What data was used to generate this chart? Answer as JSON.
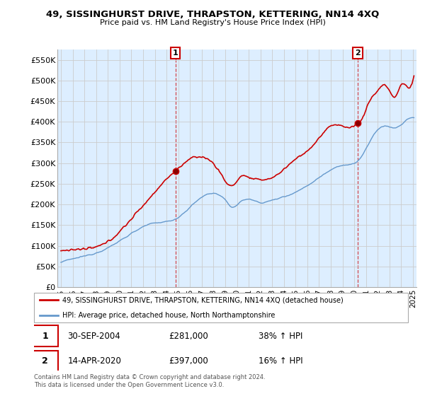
{
  "title": "49, SISSINGHURST DRIVE, THRAPSTON, KETTERING, NN14 4XQ",
  "subtitle": "Price paid vs. HM Land Registry's House Price Index (HPI)",
  "ylabel_ticks": [
    "£0",
    "£50K",
    "£100K",
    "£150K",
    "£200K",
    "£250K",
    "£300K",
    "£350K",
    "£400K",
    "£450K",
    "£500K",
    "£550K"
  ],
  "ytick_values": [
    0,
    50000,
    100000,
    150000,
    200000,
    250000,
    300000,
    350000,
    400000,
    450000,
    500000,
    550000
  ],
  "ylim": [
    0,
    575000
  ],
  "x_start_year": 1995,
  "x_end_year": 2025,
  "sale1_x": 2004.75,
  "sale1_price": 281000,
  "sale1_label": "30-SEP-2004",
  "sale2_x": 2020.29,
  "sale2_price": 397000,
  "sale2_label": "14-APR-2020",
  "legend_line1": "49, SISSINGHURST DRIVE, THRAPSTON, KETTERING, NN14 4XQ (detached house)",
  "legend_line2": "HPI: Average price, detached house, North Northamptonshire",
  "footer1": "Contains HM Land Registry data © Crown copyright and database right 2024.",
  "footer2": "This data is licensed under the Open Government Licence v3.0.",
  "red_color": "#cc0000",
  "blue_color": "#6699cc",
  "blue_fill": "#ddeeff",
  "bg_color": "#ffffff",
  "grid_color": "#cccccc"
}
